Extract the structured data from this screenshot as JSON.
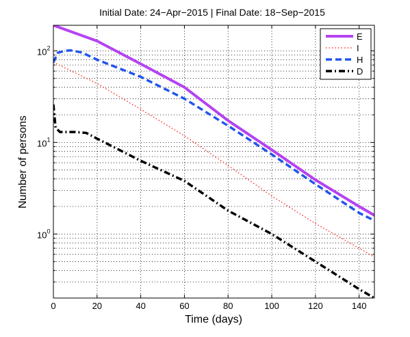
{
  "chart_data": {
    "type": "line",
    "title": "Initial Date: 24−Apr−2015 | Final Date: 18−Sep−2015",
    "xlabel": "Time (days)",
    "ylabel": "Number of persons",
    "xlim": [
      0,
      147
    ],
    "ylim": [
      0.2,
      190
    ],
    "yscale": "log",
    "grid": true,
    "legend_position": "top-right",
    "x_ticks": [
      "0",
      "20",
      "40",
      "60",
      "80",
      "100",
      "120",
      "140"
    ],
    "y_ticks": [
      {
        "base": "10",
        "exp": "0",
        "value": 1
      },
      {
        "base": "10",
        "exp": "1",
        "value": 10
      },
      {
        "base": "10",
        "exp": "2",
        "value": 100
      }
    ],
    "series": [
      {
        "name": "E",
        "color": "#b543f0",
        "style": "solid",
        "x": [
          0,
          20,
          40,
          60,
          80,
          100,
          120,
          140,
          147
        ],
        "y": [
          190,
          128,
          72,
          40,
          17.3,
          8.3,
          3.9,
          2.0,
          1.6
        ]
      },
      {
        "name": "I",
        "color": "#ff3333",
        "style": "dotted",
        "x": [
          0,
          20,
          40,
          60,
          80,
          100,
          120,
          140,
          147
        ],
        "y": [
          75,
          44,
          23,
          11.8,
          5.6,
          2.6,
          1.3,
          0.7,
          0.56
        ]
      },
      {
        "name": "H",
        "color": "#2255ee",
        "style": "dashed",
        "x": [
          0,
          2,
          5,
          8,
          10,
          13,
          20,
          40,
          60,
          80,
          100,
          120,
          140,
          147
        ],
        "y": [
          75,
          95,
          100,
          101,
          99,
          96,
          80,
          52,
          30,
          15.2,
          7.4,
          3.5,
          1.7,
          1.4
        ]
      },
      {
        "name": "D",
        "color": "#000000",
        "style": "dashdot",
        "x": [
          0,
          1,
          3,
          5,
          10,
          15,
          20,
          40,
          60,
          80,
          100,
          120,
          140,
          147
        ],
        "y": [
          26,
          14.5,
          13,
          13,
          13,
          12.7,
          11,
          6.3,
          3.8,
          1.8,
          1.0,
          0.5,
          0.25,
          0.2
        ]
      }
    ]
  }
}
